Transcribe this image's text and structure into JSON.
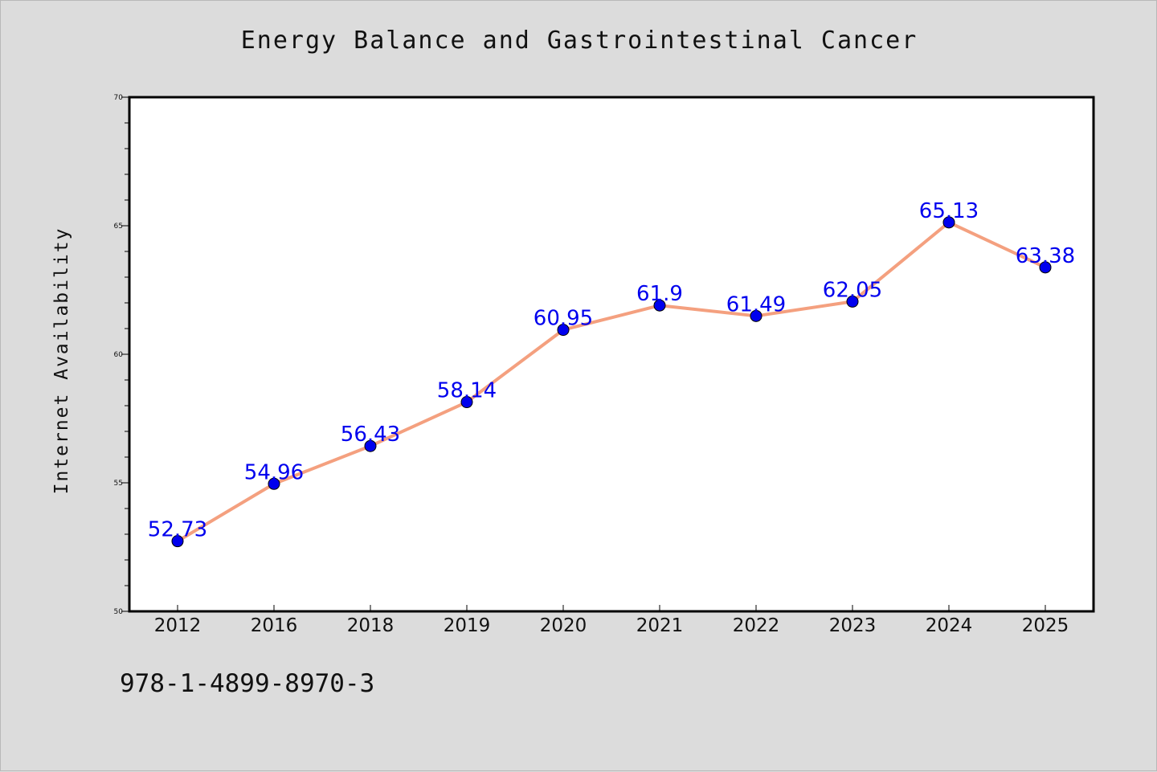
{
  "chart_data": {
    "type": "line",
    "title": "Energy Balance and Gastrointestinal Cancer",
    "xlabel": "",
    "ylabel": "Internet Availability",
    "categories": [
      "2012",
      "2016",
      "2018",
      "2019",
      "2020",
      "2021",
      "2022",
      "2023",
      "2024",
      "2025"
    ],
    "series": [
      {
        "values": [
          52.73,
          54.96,
          56.43,
          58.14,
          60.95,
          61.9,
          61.49,
          62.05,
          65.13,
          63.38
        ],
        "labels": [
          "52.73",
          "54.96",
          "56.43",
          "58.14",
          "60.95",
          "61.9",
          "61.49",
          "62.05",
          "65.13",
          "63.38"
        ]
      }
    ],
    "ylim": [
      50,
      70
    ],
    "y_ticks": [
      "50",
      "55",
      "60",
      "65",
      "70"
    ],
    "grid": false,
    "colors": {
      "line": "#f4a07f",
      "marker": "#0000ee",
      "marker_edge": "#000000",
      "data_label": "#0000ee",
      "background": "#dcdcdc",
      "plot_background": "#ffffff"
    }
  },
  "footer": {
    "note": "978-1-4899-8970-3"
  }
}
